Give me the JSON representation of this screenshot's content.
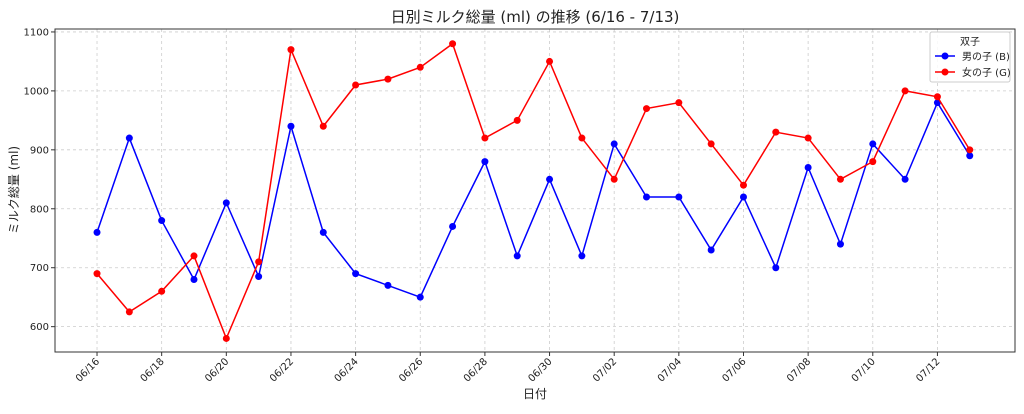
{
  "chart_data": {
    "type": "line",
    "title": "日別ミルク総量 (ml) の推移 (6/16 - 7/13)",
    "xlabel": "日付",
    "ylabel": "ミルク総量 (ml)",
    "x": [
      "06/16",
      "06/17",
      "06/18",
      "06/19",
      "06/20",
      "06/21",
      "06/22",
      "06/23",
      "06/24",
      "06/25",
      "06/26",
      "06/27",
      "06/28",
      "06/29",
      "06/30",
      "07/01",
      "07/02",
      "07/03",
      "07/04",
      "07/05",
      "07/06",
      "07/07",
      "07/08",
      "07/09",
      "07/10",
      "07/11",
      "07/12",
      "07/13"
    ],
    "xticks": [
      "06/16",
      "06/18",
      "06/20",
      "06/22",
      "06/24",
      "06/26",
      "06/28",
      "06/30",
      "07/02",
      "07/04",
      "07/06",
      "07/08",
      "07/10",
      "07/12"
    ],
    "yticks": [
      600,
      700,
      800,
      900,
      1000,
      1100
    ],
    "ylim": [
      557,
      1105
    ],
    "grid": true,
    "legend": {
      "title": "双子",
      "placement": "top-right"
    },
    "series": [
      {
        "name": "男の子 (B)",
        "color": "#0000ff",
        "marker": "circle",
        "values": [
          760,
          920,
          780,
          680,
          810,
          685,
          940,
          760,
          690,
          670,
          650,
          770,
          880,
          720,
          850,
          720,
          910,
          820,
          820,
          730,
          820,
          700,
          870,
          740,
          910,
          850,
          980,
          890
        ]
      },
      {
        "name": "女の子 (G)",
        "color": "#ff0000",
        "marker": "circle",
        "values": [
          690,
          625,
          660,
          720,
          580,
          710,
          1070,
          940,
          1010,
          1020,
          1040,
          1080,
          920,
          950,
          1050,
          920,
          850,
          970,
          980,
          910,
          840,
          930,
          920,
          850,
          880,
          1000,
          990,
          900
        ]
      }
    ]
  }
}
